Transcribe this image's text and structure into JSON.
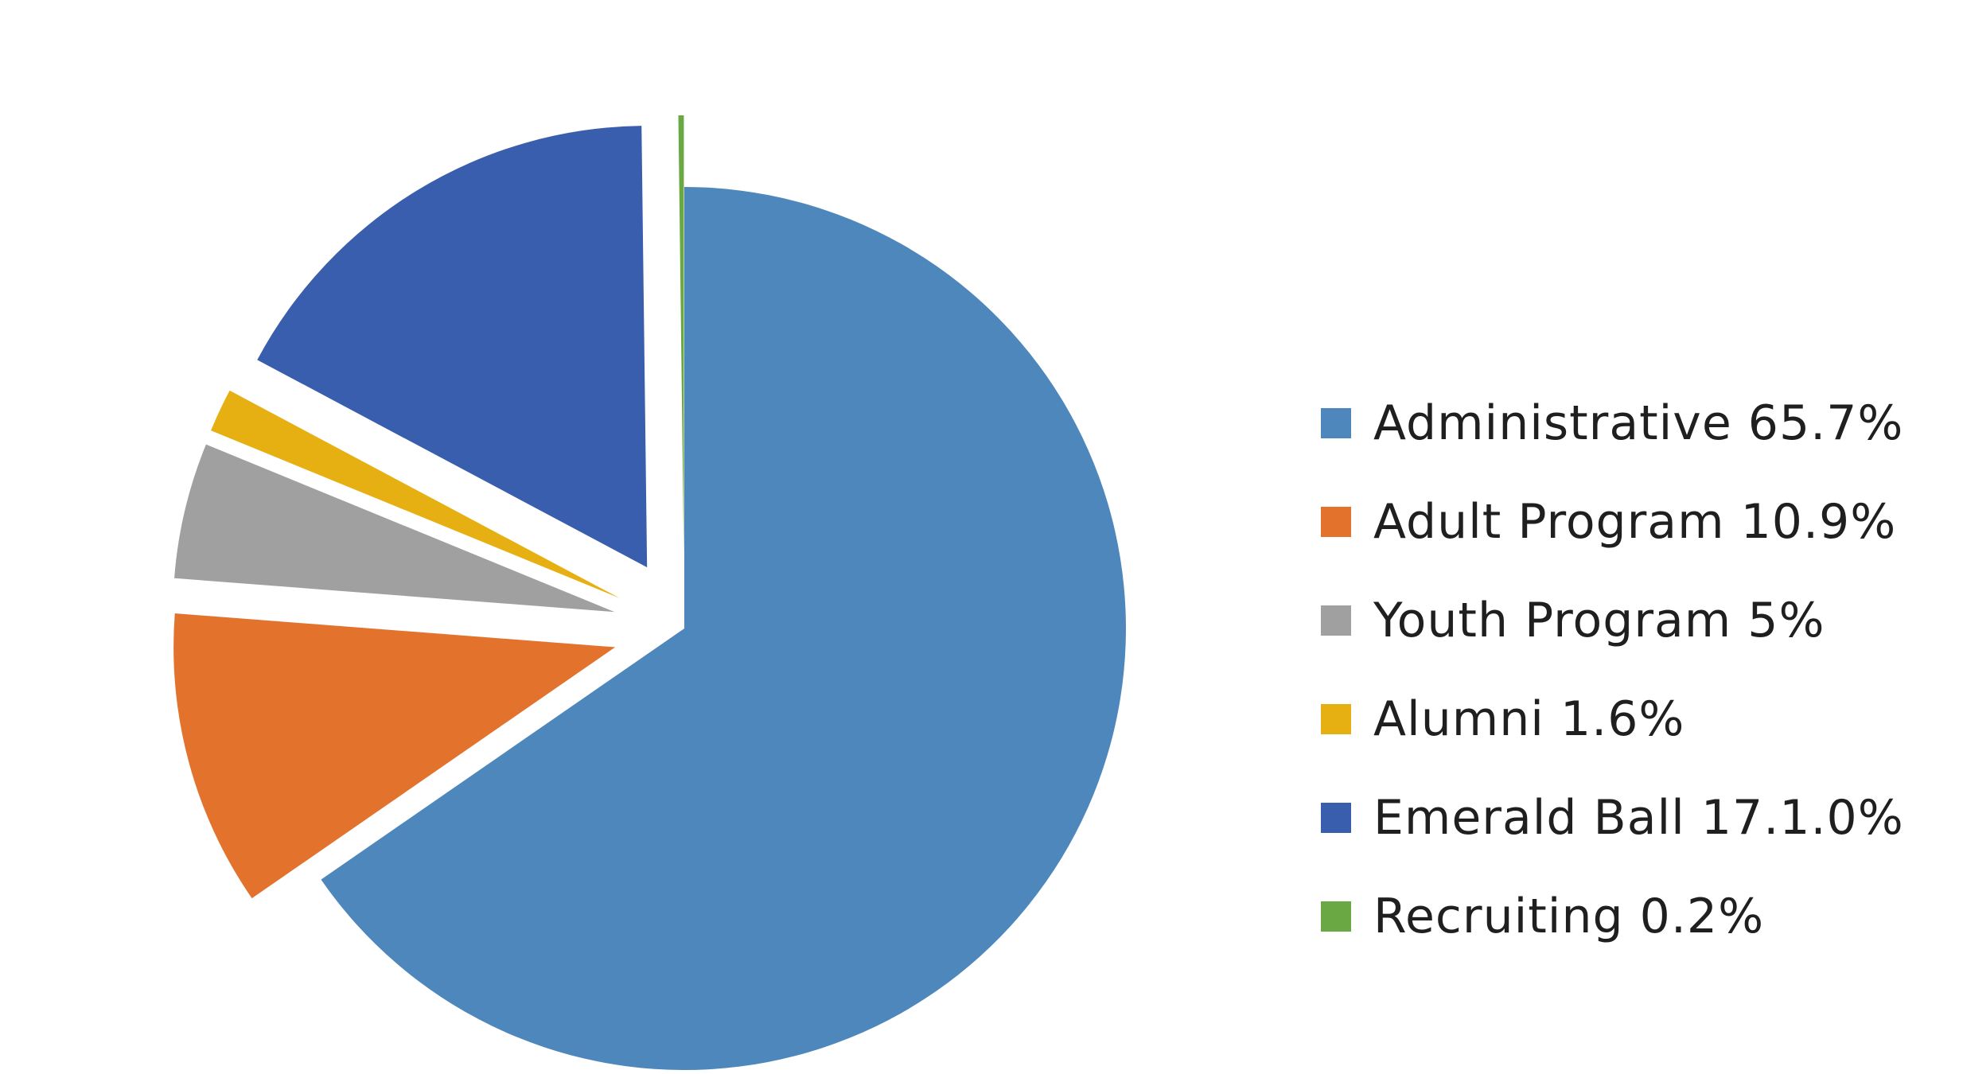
{
  "chart_data": {
    "type": "pie",
    "title": "",
    "exploded": true,
    "slices": [
      {
        "name": "Administrative",
        "label": "Administrative 65.7%",
        "value": 65.7,
        "color": "#4E87BC"
      },
      {
        "name": "Adult Program",
        "label": "Adult Program 10.9%",
        "value": 10.9,
        "color": "#E2722C"
      },
      {
        "name": "Youth Program",
        "label": "Youth Program 5%",
        "value": 5,
        "color": "#A0A0A0"
      },
      {
        "name": "Alumni",
        "label": "Alumni 1.6%",
        "value": 1.6,
        "color": "#E6B012"
      },
      {
        "name": "Emerald Ball",
        "label": "Emerald Ball 17.1.0%",
        "value": 17.1,
        "color": "#3A5EAE"
      },
      {
        "name": "Recruiting",
        "label": "Recruiting 0.2%",
        "value": 0.2,
        "color": "#6AA843"
      }
    ],
    "legend": {
      "position": "right"
    }
  }
}
